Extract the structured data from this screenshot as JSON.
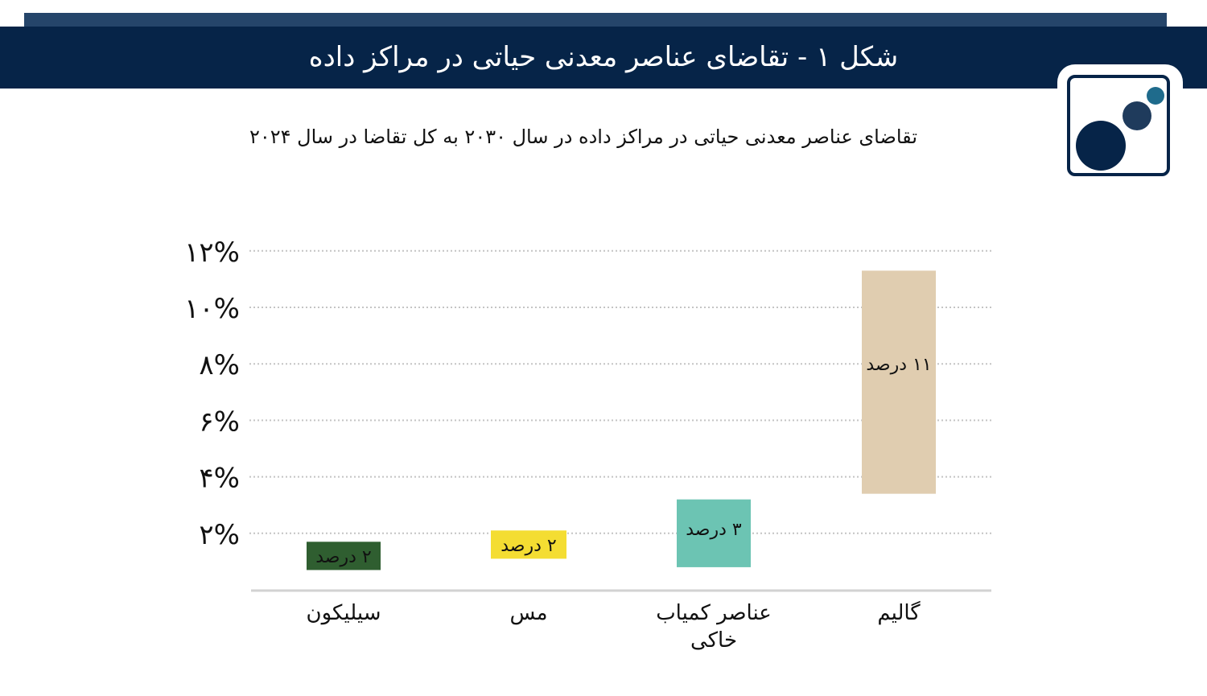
{
  "header": {
    "figure_title": "شکل ۱ - تقاضای عناصر معدنی حیاتی در مراکز داده"
  },
  "logo": {
    "icon": "three-circles-logo-icon",
    "colors": [
      "#062448",
      "#1f3b5c",
      "#1f6b8c"
    ]
  },
  "chart_data": {
    "type": "bar",
    "title": "تقاضای عناصر معدنی حیاتی در مراکز داده در سال ۲۰۳۰ به کل تقاضا در سال ۲۰۲۴",
    "xlabel": "",
    "ylabel": "",
    "ylim": [
      0,
      12
    ],
    "yticks": [
      2,
      4,
      6,
      8,
      10,
      12
    ],
    "ytick_labels": [
      "۲%",
      "۴%",
      "۶%",
      "۸%",
      "۱۰%",
      "۱۲%"
    ],
    "grid": "horizontal dotted",
    "categories": [
      "سیلیکون",
      "مس",
      "عناصر کمیاب خاکی",
      "گالیم"
    ],
    "values": [
      2,
      2,
      3,
      11
    ],
    "bar_ranges": [
      [
        0.7,
        1.7
      ],
      [
        1.1,
        2.1
      ],
      [
        0.8,
        3.2
      ],
      [
        3.4,
        11.3
      ]
    ],
    "data_labels": [
      "۲ درصد",
      "۲ درصد",
      "۳ درصد",
      "۱۱ درصد"
    ],
    "colors": [
      "#2f5e30",
      "#f4dd32",
      "#6cc4b3",
      "#e0cdb0"
    ]
  }
}
